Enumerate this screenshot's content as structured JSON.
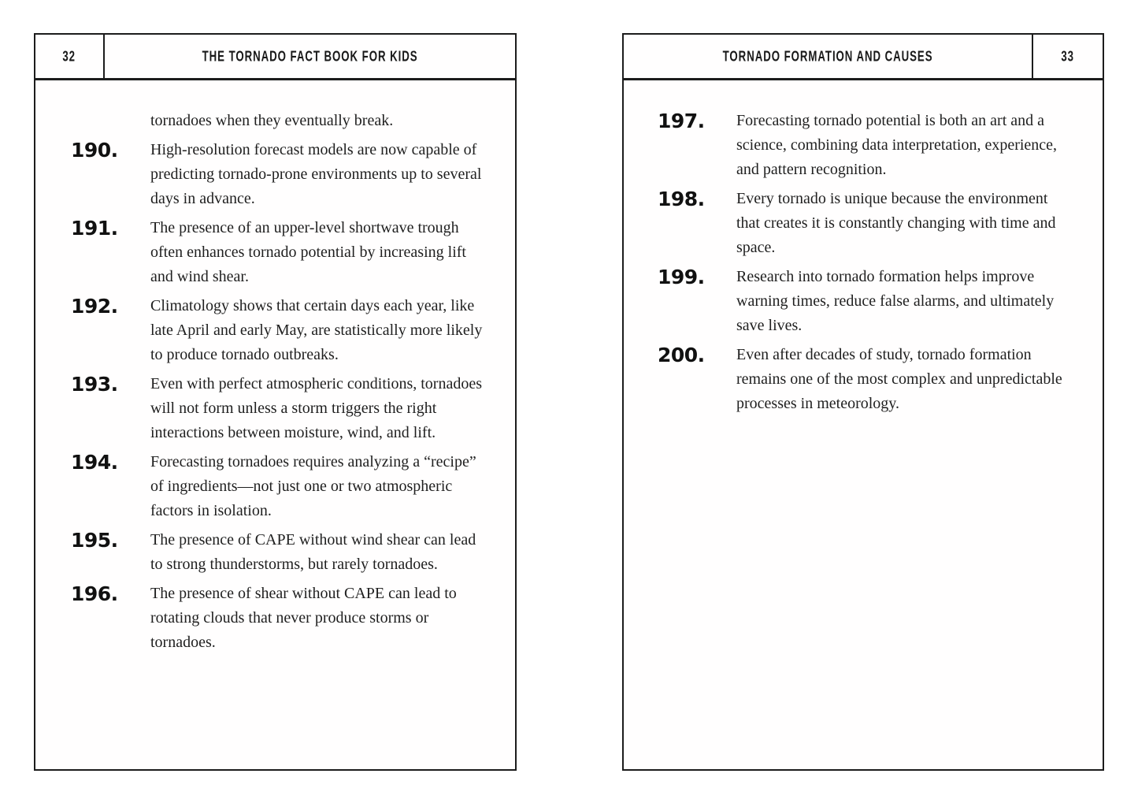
{
  "left_page": {
    "page_number": "32",
    "header_title": "THE TORNADO FACT BOOK FOR KIDS",
    "continuation_text": "tornadoes when they eventually break.",
    "facts": [
      {
        "number": "190.",
        "text": "High-resolution forecast models are now capable of predicting tornado-prone environments up to several days in advance."
      },
      {
        "number": "191.",
        "text": "The presence of an upper-level shortwave trough often enhances tornado potential by increasing lift and wind shear."
      },
      {
        "number": "192.",
        "text": "Climatology shows that certain days each year, like late April and early May, are statistically more likely to produce tornado outbreaks."
      },
      {
        "number": "193.",
        "text": "Even with perfect atmospheric conditions, tornadoes will not form unless a storm triggers the right interactions between moisture, wind, and lift."
      },
      {
        "number": "194.",
        "text": "Forecasting tornadoes requires analyzing a “recipe” of ingredients—not just one or two atmospheric factors in isolation."
      },
      {
        "number": "195.",
        "text": "The presence of CAPE without wind shear can lead to strong thunderstorms, but rarely tornadoes."
      },
      {
        "number": "196.",
        "text": "The presence of shear without CAPE can lead to rotating clouds that never produce storms or tornadoes."
      }
    ]
  },
  "right_page": {
    "page_number": "33",
    "header_title": "TORNADO FORMATION AND CAUSES",
    "facts": [
      {
        "number": "197.",
        "text": "Forecasting tornado potential is both an art and a science, combining data interpretation, experience, and pattern recognition."
      },
      {
        "number": "198.",
        "text": "Every tornado is unique because the environment that creates it is constantly changing with time and space."
      },
      {
        "number": "199.",
        "text": "Research into tornado formation helps improve warning times, reduce false alarms, and ultimately save lives."
      },
      {
        "number": "200.",
        "text": "Even after decades of study, tornado formation remains one of the most complex and unpredictable processes in meteorology."
      }
    ]
  }
}
